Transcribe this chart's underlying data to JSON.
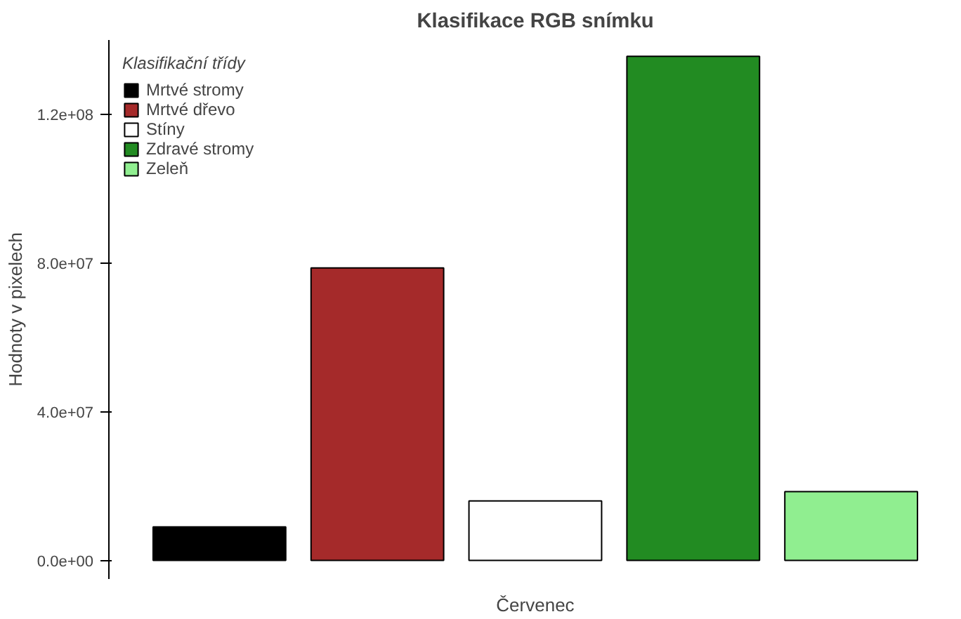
{
  "chart_data": {
    "type": "bar",
    "title": "Klasifikace RGB snímku",
    "xlabel": "Červenec",
    "ylabel": "Hodnoty v pixelech",
    "legend_title": "Klasifikační třídy",
    "categories": [
      null
    ],
    "series": [
      {
        "name": "Mrtvé stromy",
        "color": "#000000",
        "values": [
          9000000
        ]
      },
      {
        "name": "Mrtvé dřevo",
        "color": "#a52a2a",
        "values": [
          78700000
        ]
      },
      {
        "name": "Stíny",
        "color": "#ffffff",
        "values": [
          16000000
        ]
      },
      {
        "name": "Zdravé stromy",
        "color": "#228b22",
        "values": [
          135600000
        ]
      },
      {
        "name": "Zeleň",
        "color": "#90ee90",
        "values": [
          18500000
        ]
      }
    ],
    "ylim": [
      -5000000,
      140000000
    ],
    "yticks": [
      {
        "value": 0,
        "label": "0.0e+00"
      },
      {
        "value": 40000000,
        "label": "4.0e+07"
      },
      {
        "value": 80000000,
        "label": "8.0e+07"
      },
      {
        "value": 120000000,
        "label": "1.2e+08"
      }
    ],
    "grid": false,
    "legend": "top left",
    "tick_labels": "y"
  }
}
